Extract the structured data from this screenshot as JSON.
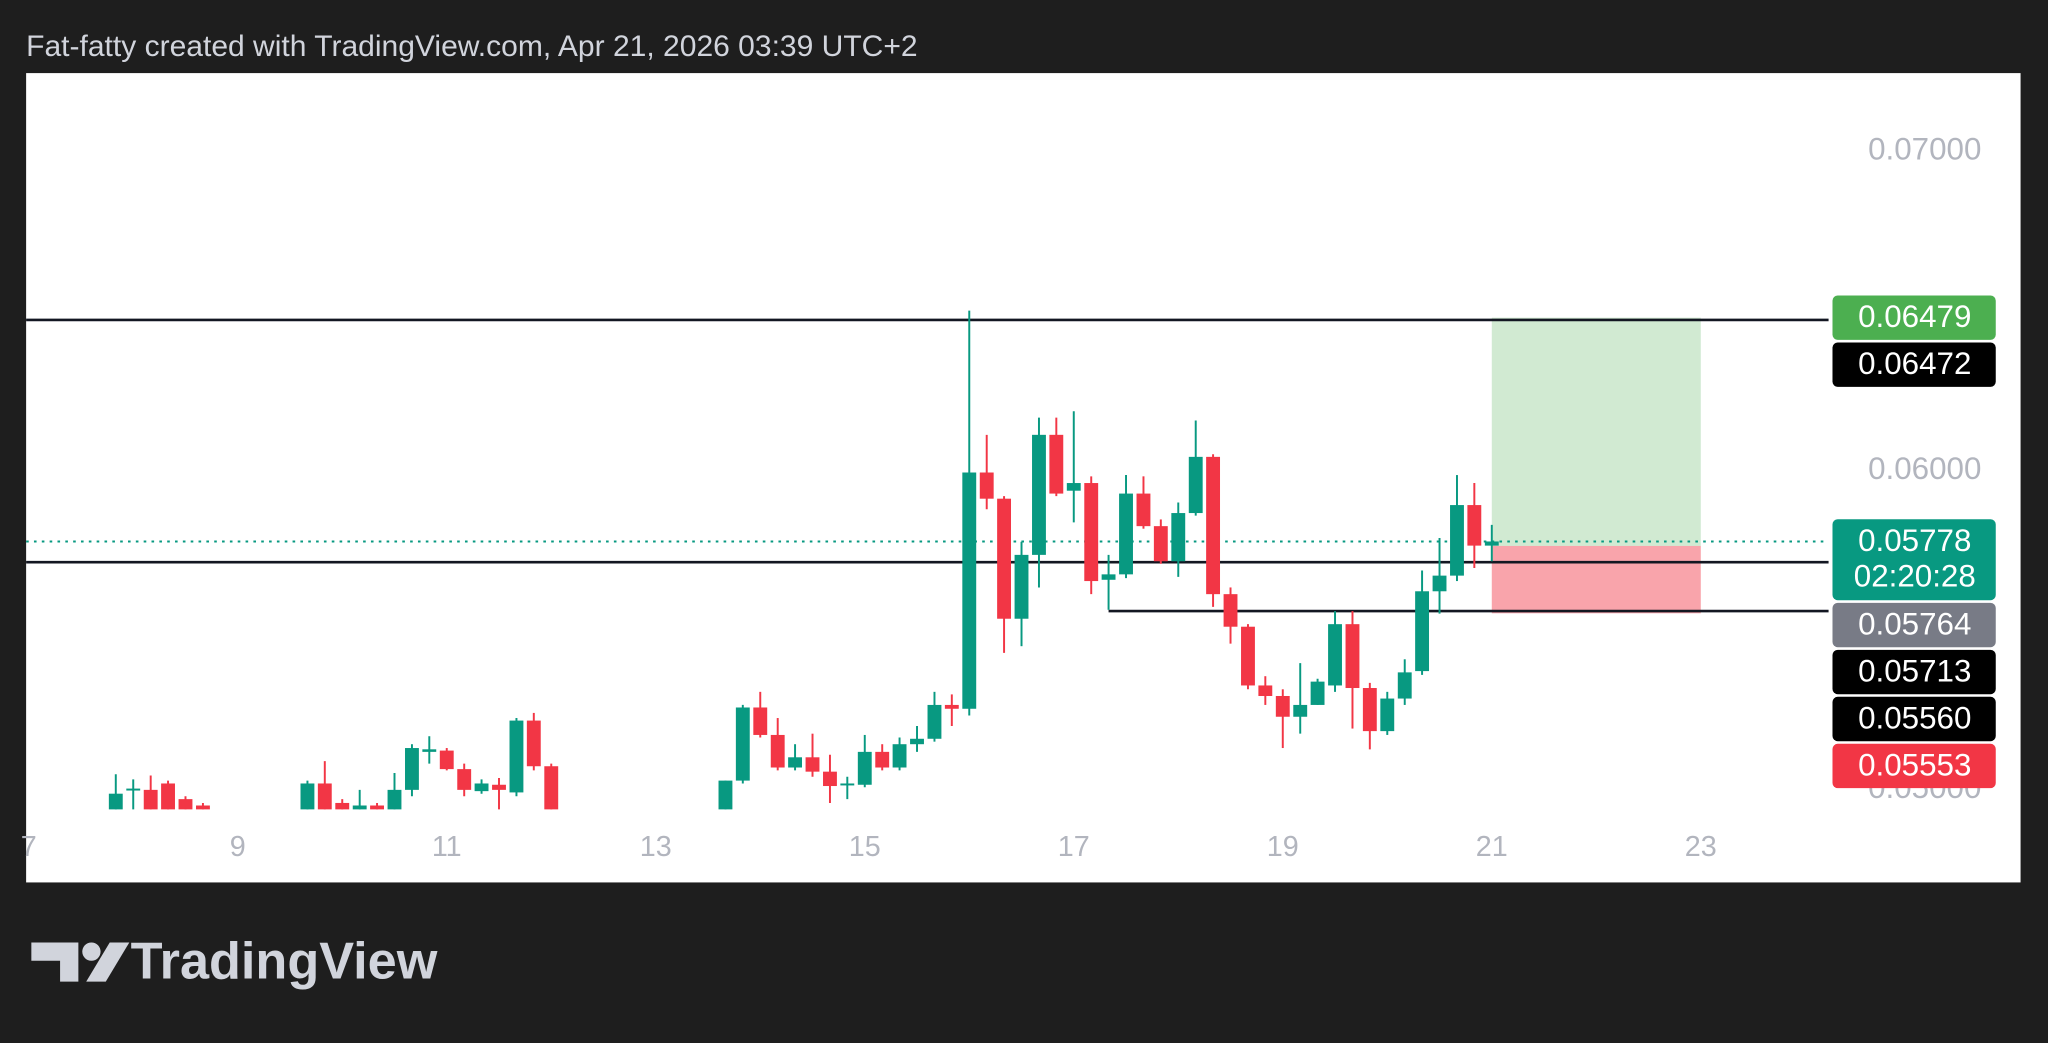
{
  "header": "Fat-fatty created with TradingView.com, Apr 21, 2026 03:39 UTC+2",
  "brand": "TradingView",
  "chart_data": {
    "type": "candlestick",
    "x": [
      7.833,
      8,
      8.167,
      8.333,
      8.5,
      8.667,
      9.667,
      9.833,
      10,
      10.167,
      10.333,
      10.5,
      10.667,
      10.833,
      11,
      11.167,
      11.333,
      11.5,
      11.667,
      11.833,
      12,
      13.667,
      13.833,
      14,
      14.167,
      14.333,
      14.5,
      14.667,
      14.833,
      15,
      15.167,
      15.333,
      15.5,
      15.667,
      15.833,
      16,
      16.167,
      16.333,
      16.5,
      16.667,
      16.833,
      17,
      17.167,
      17.333,
      17.5,
      17.667,
      17.833,
      18,
      18.167,
      18.333,
      18.5,
      18.667,
      18.833,
      19,
      19.167,
      19.333,
      19.5,
      19.667,
      19.833,
      20,
      20.167,
      20.333,
      20.5,
      20.667,
      20.833,
      21
    ],
    "open": [
      0.0493,
      0.05,
      0.05,
      0.0502,
      0.04971,
      0.04951,
      0.0493,
      0.0502,
      0.04959,
      0.0493,
      0.04951,
      0.0493,
      0.05,
      0.05119,
      0.05123,
      0.05065,
      0.04996,
      0.05016,
      0.04992,
      0.05217,
      0.05074,
      0.0493,
      0.05029,
      0.05258,
      0.05172,
      0.0507,
      0.05102,
      0.05057,
      0.05016,
      0.05016,
      0.05119,
      0.0507,
      0.05143,
      0.0516,
      0.05266,
      0.05254,
      0.05994,
      0.05912,
      0.05536,
      0.05736,
      0.06112,
      0.05937,
      0.05961,
      0.05658,
      0.05675,
      0.05928,
      0.05826,
      0.05716,
      0.05867,
      0.06043,
      0.05613,
      0.05511,
      0.05327,
      0.05294,
      0.05229,
      0.05266,
      0.05327,
      0.05519,
      0.05319,
      0.05184,
      0.05286,
      0.05372,
      0.05622,
      0.05671,
      0.05892,
      0.05765
    ],
    "high": [
      0.05049,
      0.05033,
      0.05045,
      0.05029,
      0.0498,
      0.04959,
      0.05029,
      0.0509,
      0.04971,
      0.05,
      0.04959,
      0.05053,
      0.05143,
      0.05168,
      0.05131,
      0.05082,
      0.05033,
      0.05037,
      0.05225,
      0.05241,
      0.05082,
      0.05029,
      0.05266,
      0.05307,
      0.05225,
      0.05143,
      0.05176,
      0.0511,
      0.05041,
      0.05172,
      0.05143,
      0.05164,
      0.052,
      0.05307,
      0.05299,
      0.06501,
      0.06112,
      0.0592,
      0.05777,
      0.06166,
      0.06166,
      0.06186,
      0.05982,
      0.05736,
      0.05986,
      0.05982,
      0.05847,
      0.059,
      0.06157,
      0.06051,
      0.05634,
      0.05519,
      0.05356,
      0.05315,
      0.05397,
      0.05348,
      0.0556,
      0.0556,
      0.05335,
      0.05307,
      0.05409,
      0.05687,
      0.05789,
      0.05986,
      0.05961,
      0.0583
    ],
    "low": [
      0.0493,
      0.0493,
      0.0493,
      0.0493,
      0.0493,
      0.0493,
      0.0493,
      0.0493,
      0.0493,
      0.0493,
      0.0493,
      0.0493,
      0.0498,
      0.05082,
      0.05061,
      0.0498,
      0.04988,
      0.0493,
      0.0498,
      0.05061,
      0.0493,
      0.0493,
      0.0502,
      0.05164,
      0.05061,
      0.05061,
      0.05041,
      0.04959,
      0.04971,
      0.05008,
      0.05061,
      0.05061,
      0.05119,
      0.05151,
      0.052,
      0.05233,
      0.05879,
      0.05429,
      0.0545,
      0.05634,
      0.0592,
      0.05838,
      0.05613,
      0.05564,
      0.05663,
      0.05818,
      0.05708,
      0.05667,
      0.05859,
      0.05573,
      0.05458,
      0.05315,
      0.05266,
      0.05131,
      0.05176,
      0.05266,
      0.05307,
      0.05192,
      0.05127,
      0.05172,
      0.05266,
      0.0536,
      0.05552,
      0.05654,
      0.05695,
      0.05716
    ],
    "close": [
      0.04988,
      0.05004,
      0.0493,
      0.0493,
      0.0493,
      0.0493,
      0.0502,
      0.0493,
      0.0493,
      0.04951,
      0.0493,
      0.05,
      0.05131,
      0.05127,
      0.05065,
      0.05,
      0.0502,
      0.05,
      0.05217,
      0.05074,
      0.0493,
      0.05029,
      0.05258,
      0.05172,
      0.0507,
      0.05102,
      0.05057,
      0.05012,
      0.0502,
      0.05119,
      0.0507,
      0.05143,
      0.0516,
      0.05266,
      0.05254,
      0.05994,
      0.05912,
      0.05536,
      0.05736,
      0.06112,
      0.05928,
      0.05961,
      0.05654,
      0.05675,
      0.05928,
      0.05826,
      0.05716,
      0.05867,
      0.06043,
      0.05613,
      0.05511,
      0.05327,
      0.05294,
      0.05229,
      0.05266,
      0.05339,
      0.05519,
      0.05319,
      0.05184,
      0.05286,
      0.05368,
      0.05622,
      0.05671,
      0.05892,
      0.05765,
      0.05778
    ],
    "up_color": "#089981",
    "down_color": "#f23645",
    "xlim": [
      6.975,
      26.06
    ],
    "xticks": [
      7,
      9,
      11,
      13,
      15,
      17,
      19,
      21,
      23
    ],
    "ylim": [
      0.04939,
      0.07245
    ],
    "yticks": [
      {
        "value": 0.05,
        "label": "0.05000"
      },
      {
        "value": 0.06,
        "label": "0.06000"
      },
      {
        "value": 0.07,
        "label": "0.07000"
      }
    ],
    "levels": [
      {
        "value": 0.06472,
        "label": "0.06472"
      },
      {
        "value": 0.05713,
        "label": "0.05713"
      },
      {
        "value": 0.0556,
        "label": "0.05560",
        "start": 17.333
      }
    ],
    "last_price": {
      "value": 0.05778,
      "label": "0.05778",
      "countdown": "02:20:28",
      "color": "#089981"
    },
    "position": {
      "start": 21,
      "end": 23,
      "entry": {
        "value": 0.05764,
        "label": "0.05764",
        "color": "#787b86"
      },
      "target": {
        "value": 0.06479,
        "label": "0.06479",
        "color": "#4caf50"
      },
      "stop": {
        "value": 0.05553,
        "label": "0.05553",
        "color": "#f23645"
      }
    }
  }
}
